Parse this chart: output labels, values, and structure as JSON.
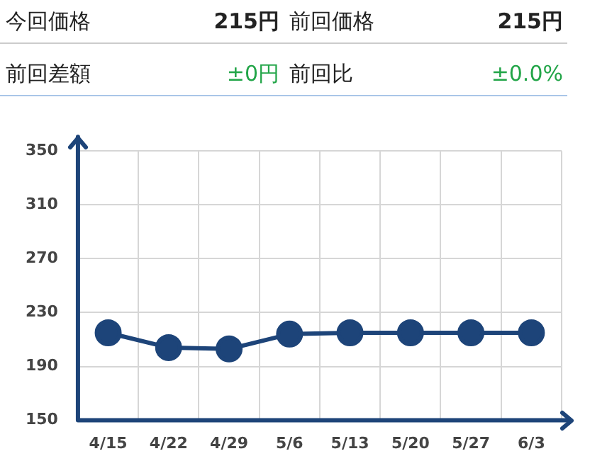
{
  "chart_data": {
    "type": "line",
    "annotations": [
      "今回価格",
      "215円",
      "前回価格",
      "215円",
      "前回差額",
      "±0円",
      "前回比",
      "±0.0%"
    ],
    "categories": [
      "4/15",
      "4/22",
      "4/29",
      "5/6",
      "5/13",
      "5/20",
      "5/27",
      "6/3"
    ],
    "series": [
      {
        "color": "#1d4479",
        "values": [
          215,
          204,
          203,
          214,
          215,
          215,
          215,
          215
        ]
      }
    ],
    "ylim": [
      150,
      350
    ],
    "yticks": [
      150,
      190,
      230,
      270,
      310,
      350
    ],
    "grid": true,
    "legend": false,
    "marker": "circle",
    "line_style": "solid"
  }
}
